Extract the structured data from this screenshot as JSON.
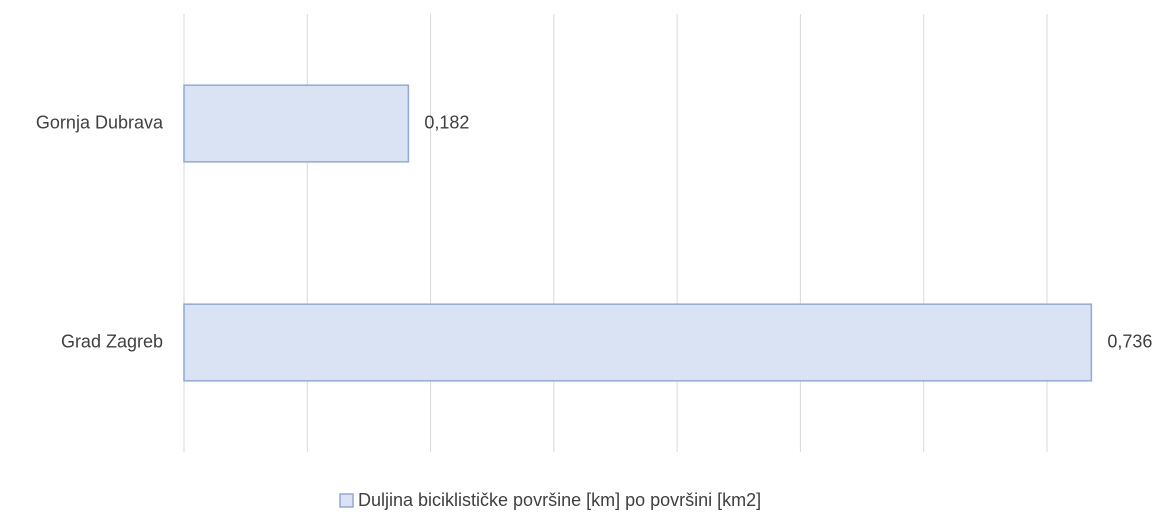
{
  "chart_data": {
    "type": "hbar",
    "categories": [
      "Gornja Dubrava",
      "Grad Zagreb"
    ],
    "series": [
      {
        "name": "Duljina biciklističke površine [km] po površini [km2]",
        "color": "#dae3f3",
        "edge_color": "#8faadc",
        "values": [
          0.182,
          0.736
        ],
        "value_labels": [
          "0,182",
          "0,736"
        ]
      }
    ],
    "xlim": [
      0,
      0.7
    ],
    "xticks": [
      0,
      0.1,
      0.2,
      0.3,
      0.4,
      0.5,
      0.6,
      0.7
    ],
    "grid": true,
    "legend": "bottom"
  }
}
